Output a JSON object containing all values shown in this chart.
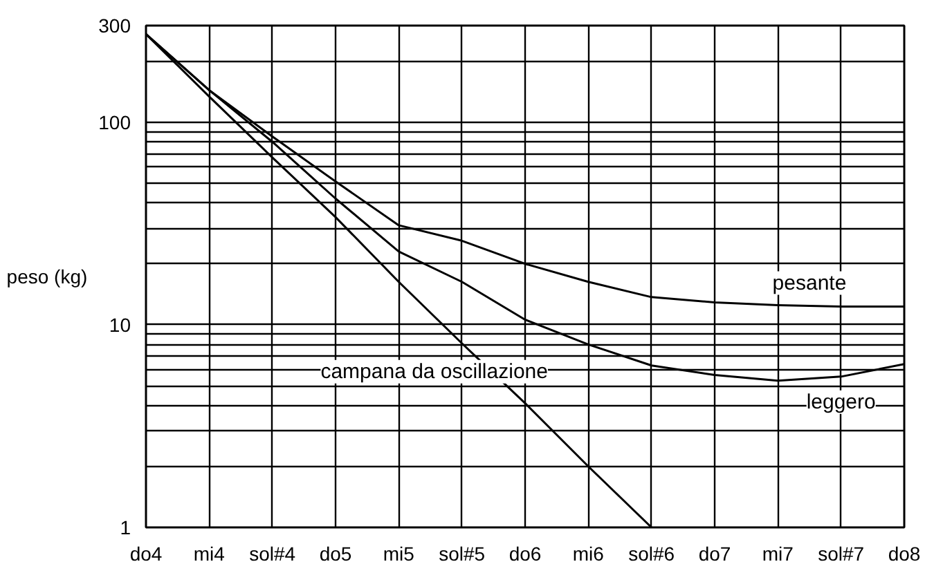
{
  "chart_data": {
    "type": "line",
    "ylabel": "peso (kg)",
    "categories": [
      "do4",
      "mi4",
      "sol#4",
      "do5",
      "mi5",
      "sol#5",
      "do6",
      "mi6",
      "sol#6",
      "do7",
      "mi7",
      "sol#7",
      "do8"
    ],
    "series": [
      {
        "name": "pesante",
        "color": "#000000",
        "values": [
          272,
          144,
          85,
          51,
          31,
          26,
          20,
          16.3,
          13.7,
          12.9,
          12.5,
          12.3,
          12.3
        ]
      },
      {
        "name": "leggero",
        "color": "#000000",
        "values": [
          272,
          144,
          80,
          42,
          23,
          16.3,
          10.6,
          8.0,
          6.3,
          5.65,
          5.3,
          5.55,
          6.4
        ]
      },
      {
        "name": "campana da oscillazione",
        "color": "#000000",
        "values": [
          272,
          134,
          67,
          34,
          16.3,
          8.1,
          4.1,
          2.0,
          1.0,
          null,
          null,
          null,
          null
        ]
      }
    ],
    "log": "y",
    "ylim": [
      1,
      300
    ],
    "yticks": [
      1,
      {
        "value": 2,
        "label": null
      },
      {
        "value": 3,
        "label": null
      },
      {
        "value": 4,
        "label": null
      },
      {
        "value": 5,
        "label": null
      },
      {
        "value": 6,
        "label": null
      },
      {
        "value": 7,
        "label": null
      },
      {
        "value": 8,
        "label": null
      },
      {
        "value": 9,
        "label": null
      },
      10,
      {
        "value": 20,
        "label": null
      },
      {
        "value": 30,
        "label": null
      },
      {
        "value": 40,
        "label": null
      },
      {
        "value": 50,
        "label": null
      },
      {
        "value": 60,
        "label": null
      },
      {
        "value": 70,
        "label": null
      },
      {
        "value": 80,
        "label": null
      },
      {
        "value": 90,
        "label": null
      },
      100,
      {
        "value": 200,
        "label": null
      },
      300
    ],
    "grid": true,
    "marker": "none",
    "line_style": "solid"
  }
}
